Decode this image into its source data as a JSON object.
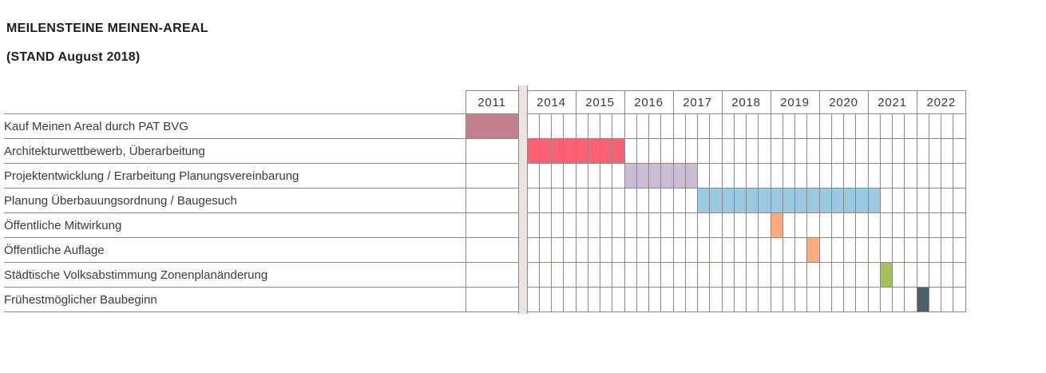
{
  "header": {
    "title": "MEILENSTEINE MEINEN-AREAL",
    "subtitle": "(STAND August 2018)"
  },
  "chart_data": {
    "type": "gantt",
    "title": "MEILENSTEINE MEINEN-AREAL",
    "subtitle": "(STAND August 2018)",
    "time_axis": {
      "first_year": "2011",
      "gap_after_first_year": true,
      "years": [
        "2014",
        "2015",
        "2016",
        "2017",
        "2018",
        "2019",
        "2020",
        "2021",
        "2022"
      ],
      "quarters_per_year": 4,
      "total_quarter_columns": 36
    },
    "colors": {
      "grid_border": "#96867f",
      "gap_column_fill": "#e9e4e1",
      "background": "#ffffff",
      "label_text": "#3c3a38",
      "title_text": "#201d1b"
    },
    "legend_position": "none",
    "grid": true,
    "rows": [
      {
        "label": "Kauf Meinen Areal durch PAT BVG",
        "period": "2011",
        "in_2011_column": true,
        "color": "#c3808e"
      },
      {
        "label": "Architekturwettbewerb, Überarbeitung",
        "period": "2014 Q1 – 2015 Q4",
        "start_quarter_index": 0,
        "end_quarter_index": 7,
        "color": "#fb6173"
      },
      {
        "label": "Projektentwicklung / Erarbeitung Planungsvereinbarung",
        "period": "2016 Q1 – 2017 Q2",
        "start_quarter_index": 8,
        "end_quarter_index": 13,
        "color": "#c9bcd4"
      },
      {
        "label": "Planung Überbauungsordnung / Baugesuch",
        "period": "2017 Q3 – 2021 Q1",
        "start_quarter_index": 14,
        "end_quarter_index": 28,
        "color": "#99c9e3"
      },
      {
        "label": "Öffentliche Mitwirkung",
        "period": "2019 Q1",
        "start_quarter_index": 20,
        "end_quarter_index": 20,
        "color": "#fbaa7b"
      },
      {
        "label": "Öffentliche Auflage",
        "period": "2019 Q4",
        "start_quarter_index": 23,
        "end_quarter_index": 23,
        "color": "#fbaa7b"
      },
      {
        "label": "Städtische Volksabstimmung Zonenplanänderung",
        "period": "2021 Q2",
        "start_quarter_index": 29,
        "end_quarter_index": 29,
        "color": "#a4c05a"
      },
      {
        "label": "Frühestmöglicher Baubeginn",
        "period": "2022 Q1",
        "start_quarter_index": 32,
        "end_quarter_index": 32,
        "color": "#475f69"
      }
    ]
  }
}
